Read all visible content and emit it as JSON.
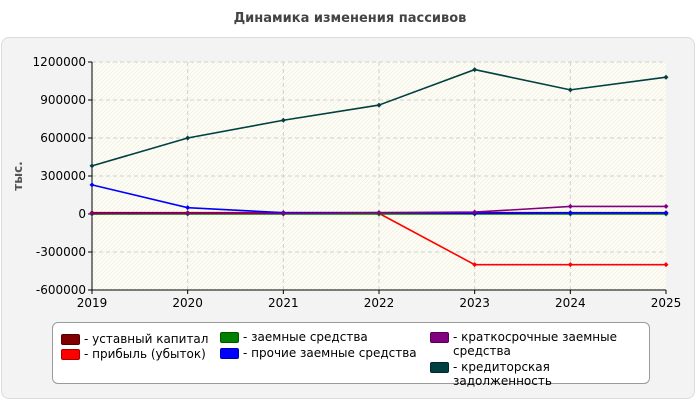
{
  "chart_data": {
    "type": "line",
    "title": "Динамика изменения пассивов",
    "ylabel": "тыс.",
    "xlabel": "",
    "x": [
      "2019",
      "2020",
      "2021",
      "2022",
      "2023",
      "2024",
      "2025"
    ],
    "ylim": [
      -600000,
      1200000
    ],
    "yticks": [
      1200000,
      900000,
      600000,
      300000,
      0,
      -300000,
      -600000
    ],
    "grid": true,
    "legend_position": "bottom",
    "series": [
      {
        "name": "- уставный капитал",
        "color": "#800000",
        "values": [
          10000,
          10000,
          10000,
          10000,
          10000,
          10000,
          10000
        ]
      },
      {
        "name": "- прибыль (убыток)",
        "color": "#ff0000",
        "values": [
          0,
          5000,
          8000,
          5000,
          -400000,
          -400000,
          -400000
        ]
      },
      {
        "name": "- заемные средства",
        "color": "#008000",
        "values": [
          0,
          0,
          0,
          0,
          0,
          0,
          0
        ]
      },
      {
        "name": "- прочие заемные средства",
        "color": "#0000ff",
        "values": [
          230000,
          50000,
          10000,
          10000,
          5000,
          8000,
          8000
        ]
      },
      {
        "name": "- краткосрочные заемные средства",
        "color": "#800080",
        "values": [
          5000,
          5000,
          5000,
          10000,
          15000,
          60000,
          60000
        ]
      },
      {
        "name": "- кредиторская задолженность",
        "color": "#004040",
        "values": [
          380000,
          600000,
          740000,
          860000,
          1140000,
          980000,
          1080000
        ]
      }
    ]
  }
}
